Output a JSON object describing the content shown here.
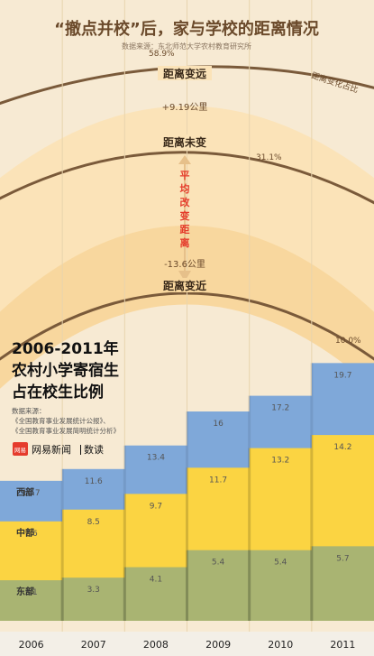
{
  "header": {
    "title": "“撤点并校”后，家与学校的距离情况",
    "source": "数据来源：东北师范大学农村教育研究所"
  },
  "distance_panel": {
    "ratio_label": "距离变化占比",
    "rows": [
      {
        "label": "距离变远",
        "share": "58.9%",
        "change": "+9.19公里"
      },
      {
        "label": "距离未变",
        "share": "31.1%"
      },
      {
        "label": "距离变近",
        "share": "10.0%",
        "change": "-13.6公里"
      }
    ],
    "avg_label": [
      "平",
      "均",
      "改",
      "变",
      "距",
      "离"
    ]
  },
  "brand": {
    "logo_text": "网易",
    "name": "网易新闻",
    "column": "数读"
  },
  "colors": {
    "bg": "#f7ead3",
    "band": "#fbe3b8",
    "arc": "#7a5a3a",
    "west": "#7fa8d9",
    "central": "#fbd442",
    "east": "#a9b472",
    "accent": "#e53b2c"
  },
  "chart_data": {
    "type": "area",
    "title": [
      "2006-2011年",
      "农村小学寄宿生",
      "占在校生比例"
    ],
    "source_lines": [
      "数据来源：",
      "《全国教育事业发展统计公报》、",
      "《全国教育事业发展简明统计分析》"
    ],
    "categories": [
      "2006",
      "2007",
      "2008",
      "2009",
      "2010",
      "2011"
    ],
    "stacked": true,
    "series": [
      {
        "name": "东部",
        "values": [
          3.1,
          3.3,
          4.1,
          5.4,
          5.4,
          5.7
        ]
      },
      {
        "name": "中部",
        "values": [
          7.6,
          8.5,
          9.7,
          11.7,
          13.2,
          14.2
        ]
      },
      {
        "name": "西部",
        "values": [
          10.7,
          11.6,
          13.4,
          16.0,
          17.2,
          19.7
        ]
      }
    ]
  }
}
